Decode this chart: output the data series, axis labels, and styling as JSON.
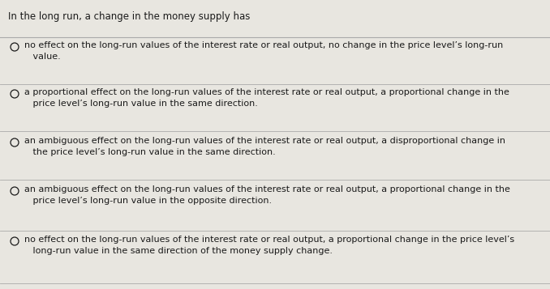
{
  "title": "In the long run, a change in the money supply has",
  "background_color": "#e8e6e0",
  "text_color": "#1a1a1a",
  "line_color": "#aaaaaa",
  "options": [
    "no effect on the long-run values of the interest rate or real output, no change in the price level’s long-run\n   value.",
    "a proportional effect on the long-run values of the interest rate or real output, a proportional change in the\n   price level’s long-run value in the same direction.",
    "an ambiguous effect on the long-run values of the interest rate or real output, a disproportional change in\n   the price level’s long-run value in the same direction.",
    "an ambiguous effect on the long-run values of the interest rate or real output, a proportional change in the\n   price level’s long-run value in the opposite direction.",
    "no effect on the long-run values of the interest rate or real output, a proportional change in the price level’s\n   long-run value in the same direction of the money supply change."
  ],
  "title_fontsize": 8.5,
  "option_fontsize": 8.0,
  "fig_width": 6.78,
  "fig_height": 3.57,
  "dpi": 100
}
